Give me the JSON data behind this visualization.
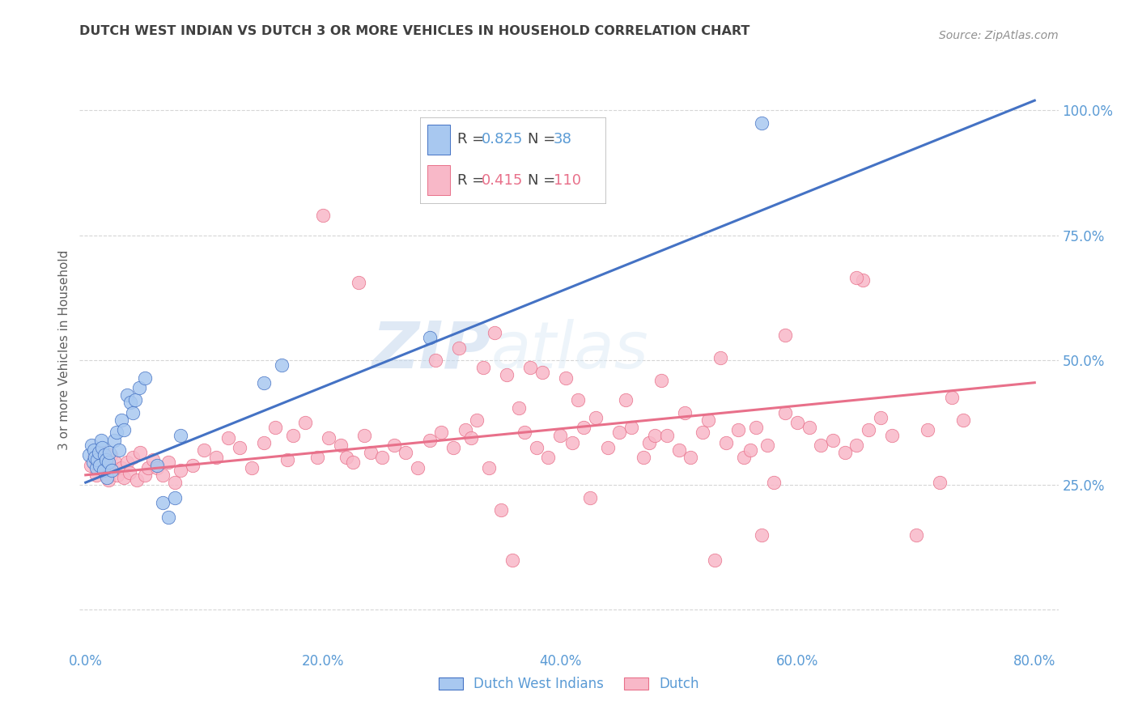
{
  "title": "DUTCH WEST INDIAN VS DUTCH 3 OR MORE VEHICLES IN HOUSEHOLD CORRELATION CHART",
  "source": "Source: ZipAtlas.com",
  "xlabel_ticks": [
    "0.0%",
    "",
    "20.0%",
    "",
    "40.0%",
    "",
    "60.0%",
    "",
    "80.0%"
  ],
  "xlabel_tick_vals": [
    0.0,
    0.1,
    0.2,
    0.3,
    0.4,
    0.5,
    0.6,
    0.7,
    0.8
  ],
  "ylabel": "3 or more Vehicles in Household",
  "ylabel_right_ticks": [
    "100.0%",
    "75.0%",
    "50.0%",
    "25.0%"
  ],
  "ylabel_right_tick_vals": [
    1.0,
    0.75,
    0.5,
    0.25
  ],
  "ylim": [
    -0.08,
    1.12
  ],
  "xlim": [
    -0.005,
    0.82
  ],
  "legend_label_blue": "Dutch West Indians",
  "legend_label_pink": "Dutch",
  "watermark_zip": "ZIP",
  "watermark_atlas": "atlas",
  "blue_color": "#A8C8F0",
  "pink_color": "#F8B8C8",
  "blue_line_color": "#4472C4",
  "pink_line_color": "#E8708A",
  "blue_scatter": [
    [
      0.003,
      0.31
    ],
    [
      0.005,
      0.33
    ],
    [
      0.006,
      0.295
    ],
    [
      0.007,
      0.32
    ],
    [
      0.008,
      0.305
    ],
    [
      0.009,
      0.285
    ],
    [
      0.01,
      0.3
    ],
    [
      0.011,
      0.315
    ],
    [
      0.012,
      0.29
    ],
    [
      0.013,
      0.34
    ],
    [
      0.014,
      0.325
    ],
    [
      0.015,
      0.28
    ],
    [
      0.016,
      0.31
    ],
    [
      0.017,
      0.3
    ],
    [
      0.018,
      0.265
    ],
    [
      0.019,
      0.295
    ],
    [
      0.02,
      0.315
    ],
    [
      0.022,
      0.28
    ],
    [
      0.024,
      0.34
    ],
    [
      0.026,
      0.355
    ],
    [
      0.028,
      0.32
    ],
    [
      0.03,
      0.38
    ],
    [
      0.032,
      0.36
    ],
    [
      0.035,
      0.43
    ],
    [
      0.038,
      0.415
    ],
    [
      0.04,
      0.395
    ],
    [
      0.042,
      0.42
    ],
    [
      0.045,
      0.445
    ],
    [
      0.05,
      0.465
    ],
    [
      0.06,
      0.29
    ],
    [
      0.065,
      0.215
    ],
    [
      0.07,
      0.185
    ],
    [
      0.075,
      0.225
    ],
    [
      0.08,
      0.35
    ],
    [
      0.15,
      0.455
    ],
    [
      0.165,
      0.49
    ],
    [
      0.29,
      0.545
    ],
    [
      0.57,
      0.975
    ]
  ],
  "pink_scatter": [
    [
      0.004,
      0.29
    ],
    [
      0.007,
      0.305
    ],
    [
      0.009,
      0.27
    ],
    [
      0.011,
      0.295
    ],
    [
      0.013,
      0.315
    ],
    [
      0.015,
      0.28
    ],
    [
      0.017,
      0.3
    ],
    [
      0.019,
      0.26
    ],
    [
      0.021,
      0.31
    ],
    [
      0.023,
      0.285
    ],
    [
      0.025,
      0.295
    ],
    [
      0.027,
      0.27
    ],
    [
      0.03,
      0.285
    ],
    [
      0.032,
      0.265
    ],
    [
      0.035,
      0.295
    ],
    [
      0.037,
      0.275
    ],
    [
      0.04,
      0.305
    ],
    [
      0.043,
      0.26
    ],
    [
      0.046,
      0.315
    ],
    [
      0.05,
      0.27
    ],
    [
      0.053,
      0.285
    ],
    [
      0.057,
      0.3
    ],
    [
      0.06,
      0.285
    ],
    [
      0.065,
      0.27
    ],
    [
      0.07,
      0.295
    ],
    [
      0.075,
      0.255
    ],
    [
      0.08,
      0.28
    ],
    [
      0.09,
      0.29
    ],
    [
      0.1,
      0.32
    ],
    [
      0.11,
      0.305
    ],
    [
      0.12,
      0.345
    ],
    [
      0.13,
      0.325
    ],
    [
      0.14,
      0.285
    ],
    [
      0.15,
      0.335
    ],
    [
      0.16,
      0.365
    ],
    [
      0.17,
      0.3
    ],
    [
      0.175,
      0.35
    ],
    [
      0.185,
      0.375
    ],
    [
      0.195,
      0.305
    ],
    [
      0.2,
      0.79
    ],
    [
      0.205,
      0.345
    ],
    [
      0.215,
      0.33
    ],
    [
      0.22,
      0.305
    ],
    [
      0.225,
      0.295
    ],
    [
      0.23,
      0.655
    ],
    [
      0.235,
      0.35
    ],
    [
      0.24,
      0.315
    ],
    [
      0.25,
      0.305
    ],
    [
      0.26,
      0.33
    ],
    [
      0.27,
      0.315
    ],
    [
      0.28,
      0.285
    ],
    [
      0.29,
      0.34
    ],
    [
      0.295,
      0.5
    ],
    [
      0.3,
      0.355
    ],
    [
      0.31,
      0.325
    ],
    [
      0.315,
      0.525
    ],
    [
      0.32,
      0.36
    ],
    [
      0.325,
      0.345
    ],
    [
      0.33,
      0.38
    ],
    [
      0.335,
      0.485
    ],
    [
      0.34,
      0.285
    ],
    [
      0.345,
      0.555
    ],
    [
      0.35,
      0.2
    ],
    [
      0.355,
      0.47
    ],
    [
      0.36,
      0.1
    ],
    [
      0.365,
      0.405
    ],
    [
      0.37,
      0.355
    ],
    [
      0.375,
      0.485
    ],
    [
      0.38,
      0.325
    ],
    [
      0.385,
      0.475
    ],
    [
      0.39,
      0.305
    ],
    [
      0.4,
      0.35
    ],
    [
      0.405,
      0.465
    ],
    [
      0.41,
      0.335
    ],
    [
      0.415,
      0.42
    ],
    [
      0.42,
      0.365
    ],
    [
      0.425,
      0.225
    ],
    [
      0.43,
      0.385
    ],
    [
      0.44,
      0.325
    ],
    [
      0.45,
      0.355
    ],
    [
      0.455,
      0.42
    ],
    [
      0.46,
      0.365
    ],
    [
      0.47,
      0.305
    ],
    [
      0.475,
      0.335
    ],
    [
      0.48,
      0.35
    ],
    [
      0.485,
      0.46
    ],
    [
      0.49,
      0.35
    ],
    [
      0.5,
      0.32
    ],
    [
      0.505,
      0.395
    ],
    [
      0.51,
      0.305
    ],
    [
      0.52,
      0.355
    ],
    [
      0.525,
      0.38
    ],
    [
      0.53,
      0.1
    ],
    [
      0.535,
      0.505
    ],
    [
      0.54,
      0.335
    ],
    [
      0.55,
      0.36
    ],
    [
      0.555,
      0.305
    ],
    [
      0.56,
      0.32
    ],
    [
      0.565,
      0.365
    ],
    [
      0.57,
      0.15
    ],
    [
      0.575,
      0.33
    ],
    [
      0.58,
      0.255
    ],
    [
      0.59,
      0.395
    ],
    [
      0.6,
      0.375
    ],
    [
      0.61,
      0.365
    ],
    [
      0.62,
      0.33
    ],
    [
      0.63,
      0.34
    ],
    [
      0.64,
      0.315
    ],
    [
      0.65,
      0.33
    ],
    [
      0.655,
      0.66
    ],
    [
      0.66,
      0.36
    ],
    [
      0.67,
      0.385
    ],
    [
      0.68,
      0.35
    ],
    [
      0.7,
      0.15
    ],
    [
      0.71,
      0.36
    ],
    [
      0.72,
      0.255
    ],
    [
      0.73,
      0.425
    ],
    [
      0.74,
      0.38
    ],
    [
      0.59,
      0.55
    ],
    [
      0.65,
      0.665
    ]
  ],
  "blue_line_x": [
    0.0,
    0.8
  ],
  "blue_line_y": [
    0.255,
    1.02
  ],
  "pink_line_x": [
    0.0,
    0.8
  ],
  "pink_line_y": [
    0.27,
    0.455
  ],
  "grid_color": "#CCCCCC",
  "background_color": "#FFFFFF",
  "right_axis_color": "#5B9BD5",
  "title_color": "#404040",
  "ylabel_color": "#606060",
  "source_color": "#909090"
}
